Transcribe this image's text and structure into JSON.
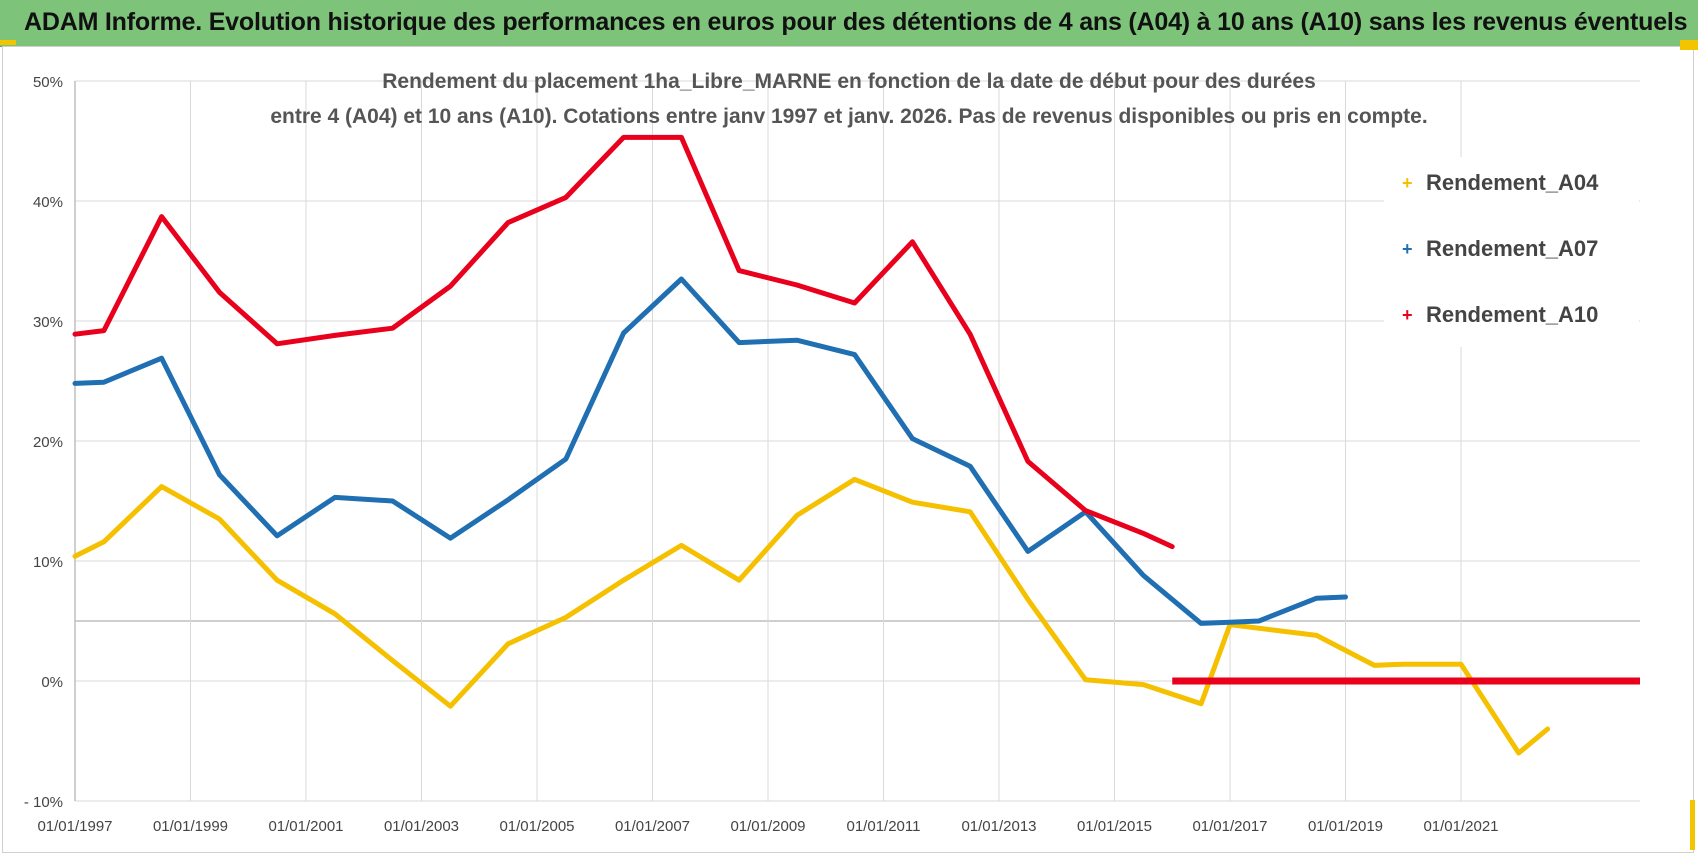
{
  "header": {
    "banner_title": "ADAM Informe. Evolution historique des performances en euros pour des détentions de 4 ans (A04) à 10 ans (A10) sans les revenus éventuels"
  },
  "colors": {
    "banner": "#7dc47a",
    "A04": "#f5c000",
    "A07": "#1f6fb2",
    "A10": "#e8001c"
  },
  "chart_data": {
    "type": "line",
    "title_line1": "Rendement du placement 1ha_Libre_MARNE en fonction de la date de début pour des durées",
    "title_line2": "entre 4 (A04) et 10 ans (A10).  Cotations entre janv 1997 et janv. 2026. Pas de revenus disponibles ou pris en compte.",
    "xlabel": "",
    "ylabel": "",
    "x_range": [
      1997.0,
      2024.1
    ],
    "ylim": [
      -10,
      50
    ],
    "y_ticks": [
      -10,
      0,
      10,
      20,
      30,
      40,
      50
    ],
    "y_tick_labels": [
      "- 10%",
      "0%",
      "10%",
      "20%",
      "30%",
      "40%",
      "50%"
    ],
    "x_ticks": [
      1997,
      1999,
      2001,
      2003,
      2005,
      2007,
      2009,
      2011,
      2013,
      2015,
      2017,
      2019,
      2021
    ],
    "x_tick_labels": [
      "01/01/1997",
      "01/01/1999",
      "01/01/2001",
      "01/01/2003",
      "01/01/2005",
      "01/01/2007",
      "01/01/2009",
      "01/01/2011",
      "01/01/2013",
      "01/01/2015",
      "01/01/2017",
      "01/01/2019",
      "01/01/2021"
    ],
    "grid": true,
    "legend_position": "right",
    "series": [
      {
        "name": "Rendement_A04",
        "color": "#f5c000",
        "x": [
          1997.0,
          1997.5,
          1998.5,
          1999.5,
          2000.5,
          2001.5,
          2002.5,
          2003.5,
          2004.5,
          2005.5,
          2006.5,
          2007.5,
          2008.5,
          2009.5,
          2010.5,
          2011.5,
          2012.5,
          2013.5,
          2014.5,
          2015.5,
          2016.5,
          2017.0,
          2018.5,
          2019.5,
          2020.0,
          2021.0,
          2022.0,
          2022.5
        ],
        "y": [
          10.4,
          11.6,
          16.2,
          13.5,
          8.4,
          5.6,
          1.7,
          -2.1,
          3.1,
          5.3,
          8.4,
          11.3,
          8.4,
          13.8,
          16.8,
          14.9,
          14.1,
          6.8,
          0.1,
          -0.3,
          -1.9,
          4.7,
          3.8,
          1.3,
          1.4,
          1.4,
          -6.0,
          -4.0
        ]
      },
      {
        "name": "Rendement_A07",
        "color": "#1f6fb2",
        "x": [
          1997.0,
          1997.5,
          1998.5,
          1999.5,
          2000.5,
          2001.5,
          2002.5,
          2003.5,
          2004.5,
          2005.5,
          2006.5,
          2007.5,
          2008.5,
          2009.5,
          2010.5,
          2011.5,
          2012.5,
          2013.5,
          2014.5,
          2015.5,
          2016.5,
          2017.0,
          2017.5,
          2018.5,
          2019.0
        ],
        "y": [
          24.8,
          24.9,
          26.9,
          17.2,
          12.1,
          15.3,
          15.0,
          11.9,
          15.1,
          18.5,
          29.0,
          33.5,
          28.2,
          28.4,
          27.2,
          20.2,
          17.9,
          10.8,
          14.1,
          8.8,
          4.8,
          4.9,
          5.0,
          6.9,
          7.0
        ]
      },
      {
        "name": "Rendement_A10",
        "color": "#e8001c",
        "x": [
          1997.0,
          1997.5,
          1998.5,
          1999.5,
          2000.5,
          2001.5,
          2002.5,
          2003.5,
          2004.5,
          2005.5,
          2006.5,
          2007.5,
          2008.5,
          2009.5,
          2010.5,
          2011.5,
          2012.5,
          2013.5,
          2014.5,
          2015.5,
          2016.0
        ],
        "y": [
          28.9,
          29.2,
          38.7,
          32.4,
          28.1,
          28.8,
          29.4,
          32.9,
          38.2,
          40.3,
          45.3,
          45.3,
          34.2,
          33.0,
          31.5,
          36.6,
          28.9,
          18.3,
          14.2,
          12.3,
          11.2
        ],
        "zero_segment_x": [
          2016.0,
          2024.1
        ],
        "zero_segment_y": [
          0,
          0
        ]
      }
    ]
  }
}
